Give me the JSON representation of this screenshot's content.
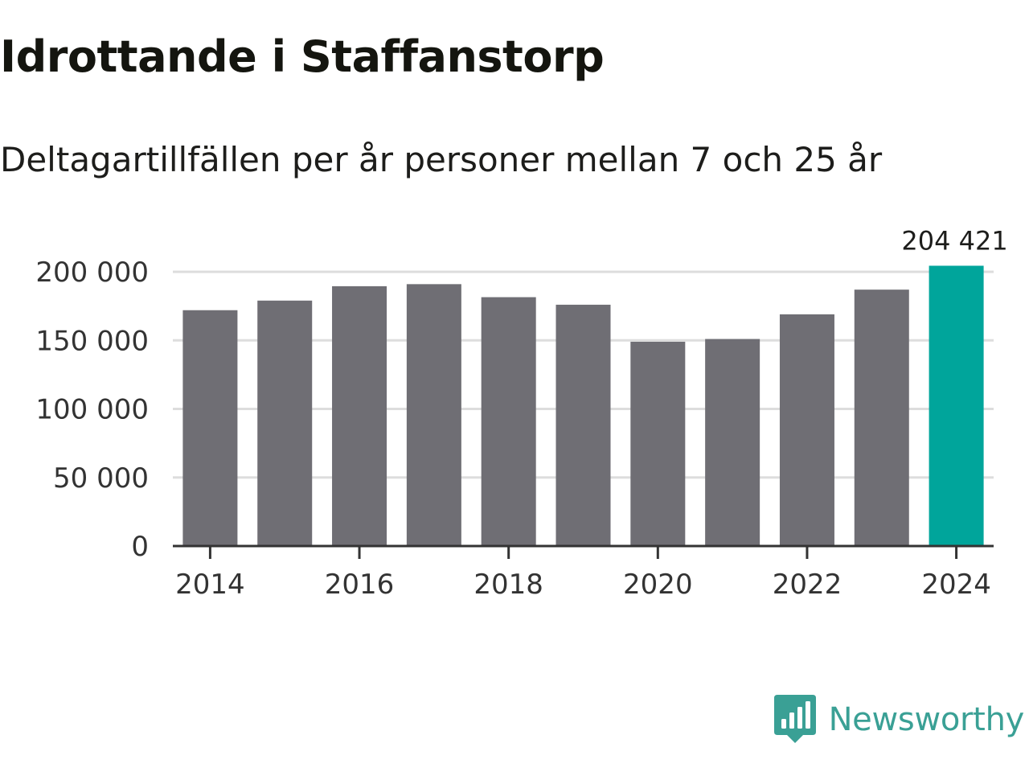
{
  "header": {
    "title": "Idrottande i Staffanstorp",
    "subtitle": "Deltagartillfällen per år personer mellan 7 och 25 år"
  },
  "brand": {
    "name": "Newsworthy",
    "icon": "newsworthy-bar-chart-icon",
    "color": "#3aa095"
  },
  "colors": {
    "bar": "#6f6e74",
    "highlight": "#00a59b",
    "grid": "#dddddd",
    "axis": "#333333",
    "text": "#333333"
  },
  "chart_data": {
    "type": "bar",
    "title": "Idrottande i Staffanstorp",
    "subtitle": "Deltagartillfällen per år personer mellan 7 och 25 år",
    "xlabel": "",
    "ylabel": "",
    "categories": [
      "2014",
      "2015",
      "2016",
      "2017",
      "2018",
      "2019",
      "2020",
      "2021",
      "2022",
      "2023",
      "2024"
    ],
    "values": [
      172000,
      179000,
      189500,
      191000,
      181500,
      176000,
      149000,
      151000,
      169000,
      187000,
      204421
    ],
    "ylim": [
      0,
      200000
    ],
    "yticks": [
      0,
      50000,
      100000,
      150000,
      200000
    ],
    "ytick_labels": [
      "0",
      "50 000",
      "100 000",
      "150 000",
      "200 000"
    ],
    "xtick_labels": [
      "2014",
      "2016",
      "2018",
      "2020",
      "2022",
      "2024"
    ],
    "grid": true,
    "highlight_index": 10,
    "annotation": {
      "category": "2024",
      "label": "204 421"
    }
  }
}
